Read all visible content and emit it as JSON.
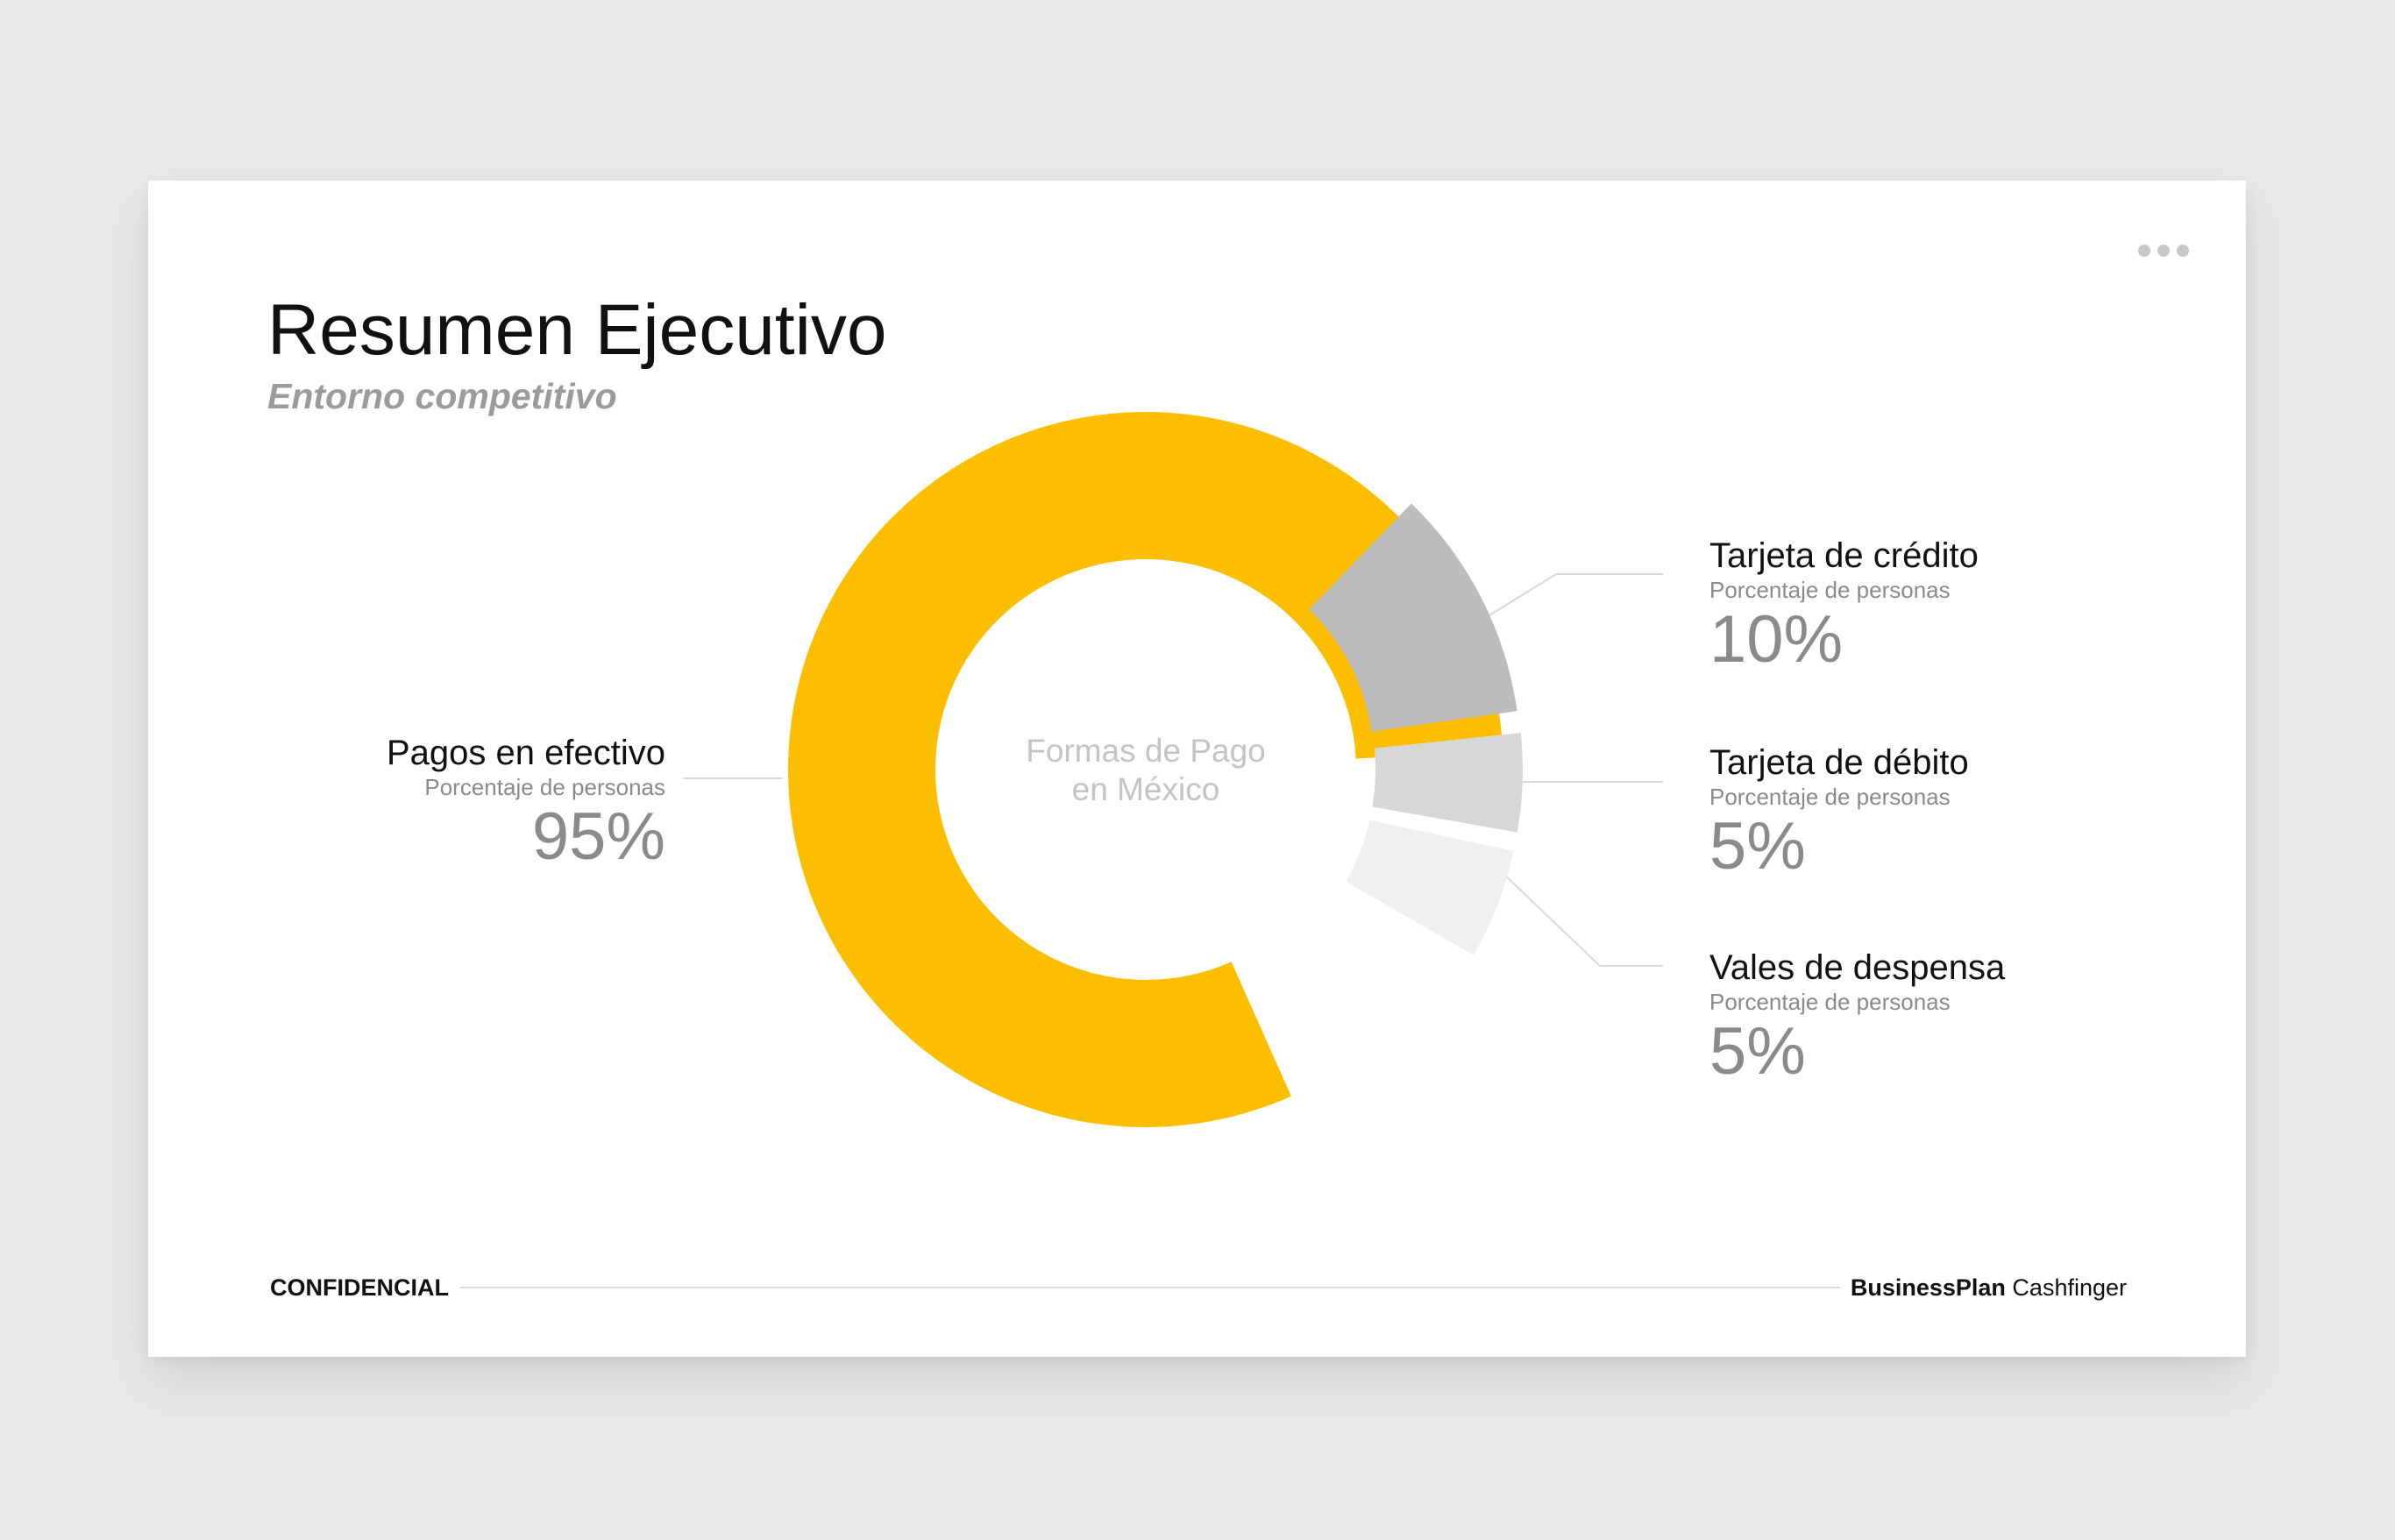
{
  "slide": {
    "title": "Resumen Ejecutivo",
    "subtitle": "Entorno competitivo",
    "footer_left": "CONFIDENCIAL",
    "footer_brand_bold": "BusinessPlan",
    "footer_brand_regular": " Cashfinger",
    "menu_icon": "more-dots-icon"
  },
  "chart_data": {
    "type": "pie",
    "variant": "donut",
    "center_label": [
      "Formas de Pago",
      "en México"
    ],
    "measure_label": "Porcentaje de personas",
    "slices": [
      {
        "name": "Pagos en efectivo",
        "value": 95,
        "value_label": "95%",
        "color": "#FDBE00"
      },
      {
        "name": "Tarjeta de crédito",
        "value": 10,
        "value_label": "10%",
        "color": "#BCBCBC"
      },
      {
        "name": "Tarjeta de débito",
        "value": 5,
        "value_label": "5%",
        "color": "#D7D7D7"
      },
      {
        "name": "Vales de despensa",
        "value": 5,
        "value_label": "5%",
        "color": "#EFEFEF"
      }
    ]
  }
}
